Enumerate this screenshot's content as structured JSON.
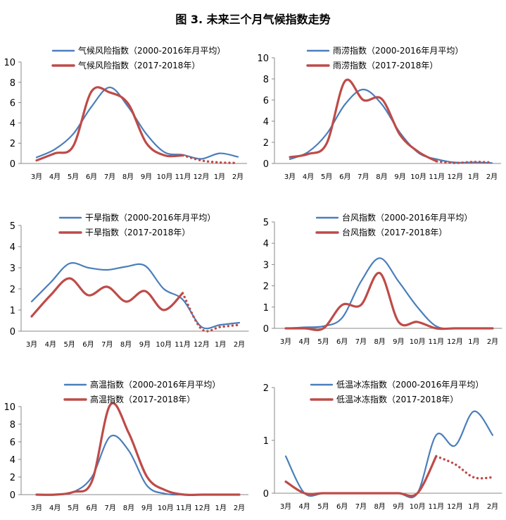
{
  "figure_title": "图 3. 未来三个月气候指数走势",
  "colors": {
    "avg": "#4a7ebb",
    "recent": "#be4b48"
  },
  "chart_data": [
    {
      "type": "line",
      "categories": [
        "3月",
        "4月",
        "5月",
        "6月",
        "7月",
        "8月",
        "9月",
        "10月",
        "11月",
        "12月",
        "1月",
        "2月"
      ],
      "ylim": [
        0,
        10
      ],
      "yticks": [
        0,
        2,
        4,
        6,
        8,
        10
      ],
      "grid": false,
      "legend": "top",
      "series": [
        {
          "name": "气候风险指数（2000-2016年月平均）",
          "style": "solid",
          "values": [
            0.6,
            1.4,
            2.9,
            5.6,
            7.5,
            5.6,
            2.9,
            1.1,
            0.85,
            0.45,
            1.0,
            0.65
          ]
        },
        {
          "name": "气候风险指数（2017-2018年）",
          "style": "solid",
          "values": [
            0.3,
            1.0,
            1.7,
            7.1,
            7.0,
            5.9,
            2.0,
            0.8,
            0.8,
            null,
            null,
            null
          ]
        },
        {
          "name": "",
          "style": "dotted",
          "values": [
            null,
            null,
            null,
            null,
            null,
            null,
            null,
            null,
            0.8,
            0.3,
            0.1,
            0.05
          ]
        }
      ]
    },
    {
      "type": "line",
      "categories": [
        "3月",
        "4月",
        "5月",
        "6月",
        "7月",
        "8月",
        "9月",
        "10月",
        "11月",
        "12月",
        "1月",
        "2月"
      ],
      "ylim": [
        0,
        10
      ],
      "yticks": [
        0,
        2,
        4,
        6,
        8,
        10
      ],
      "grid": false,
      "legend": "top",
      "series": [
        {
          "name": "雨涝指数（2000-2016年月平均）",
          "style": "solid",
          "values": [
            0.4,
            1.1,
            2.8,
            5.6,
            7.0,
            5.6,
            2.9,
            1.0,
            0.4,
            0.1,
            0.1,
            0.05
          ]
        },
        {
          "name": "雨涝指数（2017-2018年）",
          "style": "solid",
          "values": [
            0.6,
            0.9,
            1.9,
            7.8,
            6.0,
            6.1,
            2.7,
            1.1,
            0.2,
            null,
            null,
            null
          ]
        },
        {
          "name": "",
          "style": "dotted",
          "values": [
            null,
            null,
            null,
            null,
            null,
            null,
            null,
            null,
            0.2,
            0.05,
            0.15,
            0.1
          ]
        }
      ]
    },
    {
      "type": "line",
      "categories": [
        "3月",
        "4月",
        "5月",
        "6月",
        "7月",
        "8月",
        "9月",
        "10月",
        "11月",
        "12月",
        "1月",
        "2月"
      ],
      "ylim": [
        0,
        5
      ],
      "yticks": [
        0,
        1,
        2,
        3,
        4,
        5
      ],
      "grid": false,
      "legend": "top",
      "series": [
        {
          "name": "干旱指数（2000-2016年月平均）",
          "style": "solid",
          "values": [
            1.4,
            2.3,
            3.2,
            3.0,
            2.9,
            3.05,
            3.1,
            2.0,
            1.5,
            0.2,
            0.3,
            0.4
          ]
        },
        {
          "name": "干旱指数（2017-2018年）",
          "style": "solid",
          "values": [
            0.7,
            1.7,
            2.5,
            1.7,
            2.1,
            1.4,
            1.9,
            1.0,
            1.8,
            null,
            null,
            null
          ]
        },
        {
          "name": "",
          "style": "dotted",
          "values": [
            null,
            null,
            null,
            null,
            null,
            null,
            null,
            null,
            1.8,
            0.1,
            0.2,
            0.3
          ]
        }
      ]
    },
    {
      "type": "line",
      "categories": [
        "3月",
        "4月",
        "5月",
        "6月",
        "7月",
        "8月",
        "9月",
        "10月",
        "11月",
        "12月",
        "1月",
        "2月"
      ],
      "ylim": [
        0,
        5
      ],
      "yticks": [
        0,
        1,
        2,
        3,
        4,
        5
      ],
      "grid": false,
      "legend": "top",
      "series": [
        {
          "name": "台风指数（2000-2016年月平均）",
          "style": "solid",
          "values": [
            0.0,
            0.05,
            0.1,
            0.5,
            2.2,
            3.3,
            2.2,
            1.0,
            0.1,
            0.0,
            0.0,
            0.0
          ]
        },
        {
          "name": "台风指数（2017-2018年）",
          "style": "solid",
          "values": [
            0.0,
            0.0,
            0.0,
            1.1,
            1.1,
            2.6,
            0.3,
            0.3,
            0.0,
            0.0,
            0.0,
            0.0
          ]
        }
      ]
    },
    {
      "type": "line",
      "categories": [
        "3月",
        "4月",
        "5月",
        "6月",
        "7月",
        "8月",
        "9月",
        "10月",
        "11月",
        "12月",
        "1月",
        "2月"
      ],
      "ylim": [
        0,
        10
      ],
      "yticks": [
        0,
        2,
        4,
        6,
        8,
        10
      ],
      "grid": false,
      "legend": "top",
      "series": [
        {
          "name": "高温指数（2000-2016年月平均）",
          "style": "solid",
          "values": [
            0.0,
            0.0,
            0.3,
            2.0,
            6.6,
            5.0,
            1.0,
            0.1,
            0.0,
            0.0,
            0.0,
            0.0
          ]
        },
        {
          "name": "高温指数（2017-2018年）",
          "style": "solid",
          "values": [
            0.0,
            0.0,
            0.3,
            1.5,
            10.2,
            7.0,
            2.0,
            0.5,
            0.0,
            0.0,
            0.0,
            0.0
          ]
        }
      ]
    },
    {
      "type": "line",
      "categories": [
        "3月",
        "4月",
        "5月",
        "6月",
        "7月",
        "8月",
        "9月",
        "10月",
        "11月",
        "12月",
        "1月",
        "2月"
      ],
      "ylim": [
        0,
        2
      ],
      "yticks": [
        0,
        1,
        2
      ],
      "grid": false,
      "legend": "top",
      "series": [
        {
          "name": "低温冰冻指数（2000-2016年月平均）",
          "style": "solid",
          "values": [
            0.7,
            0.0,
            0.0,
            0.0,
            0.0,
            0.0,
            0.0,
            0.0,
            1.1,
            0.9,
            1.55,
            1.1
          ]
        },
        {
          "name": "低温冰冻指数（2017-2018年）",
          "style": "solid",
          "values": [
            0.22,
            0.0,
            0.0,
            0.0,
            0.0,
            0.0,
            0.0,
            0.0,
            0.7,
            null,
            null,
            null
          ]
        },
        {
          "name": "",
          "style": "dotted",
          "values": [
            null,
            null,
            null,
            null,
            null,
            null,
            null,
            null,
            0.7,
            0.55,
            0.3,
            0.3
          ]
        }
      ]
    }
  ]
}
